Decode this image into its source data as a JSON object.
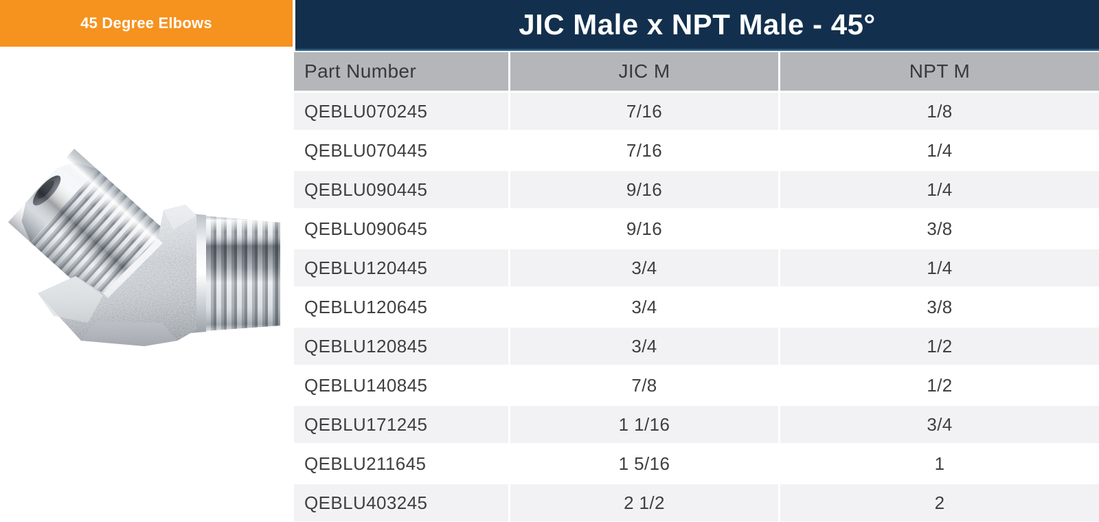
{
  "banner": {
    "label": "45 Degree Elbows"
  },
  "header": {
    "title": "JIC Male x NPT Male - 45°"
  },
  "product": {
    "image_name": "45-degree-elbow-jic-male-x-npt-male-fitting"
  },
  "table": {
    "columns": [
      "Part Number",
      "JIC M",
      "NPT M"
    ],
    "rows": [
      [
        "QEBLU070245",
        "7/16",
        "1/8"
      ],
      [
        "QEBLU070445",
        "7/16",
        "1/4"
      ],
      [
        "QEBLU090445",
        "9/16",
        "1/4"
      ],
      [
        "QEBLU090645",
        "9/16",
        "3/8"
      ],
      [
        "QEBLU120445",
        "3/4",
        "1/4"
      ],
      [
        "QEBLU120645",
        "3/4",
        "3/8"
      ],
      [
        "QEBLU120845",
        "3/4",
        "1/2"
      ],
      [
        "QEBLU140845",
        "7/8",
        "1/2"
      ],
      [
        "QEBLU171245",
        "1 1/16",
        "3/4"
      ],
      [
        "QEBLU211645",
        "1 5/16",
        "1"
      ],
      [
        "QEBLU403245",
        "2 1/2",
        "2"
      ]
    ]
  },
  "colors": {
    "accent_orange": "#f6921e",
    "navy": "#12304d",
    "header_gray": "#b5b6b9",
    "row_alt": "#f2f2f4",
    "text": "#3f3f41"
  }
}
